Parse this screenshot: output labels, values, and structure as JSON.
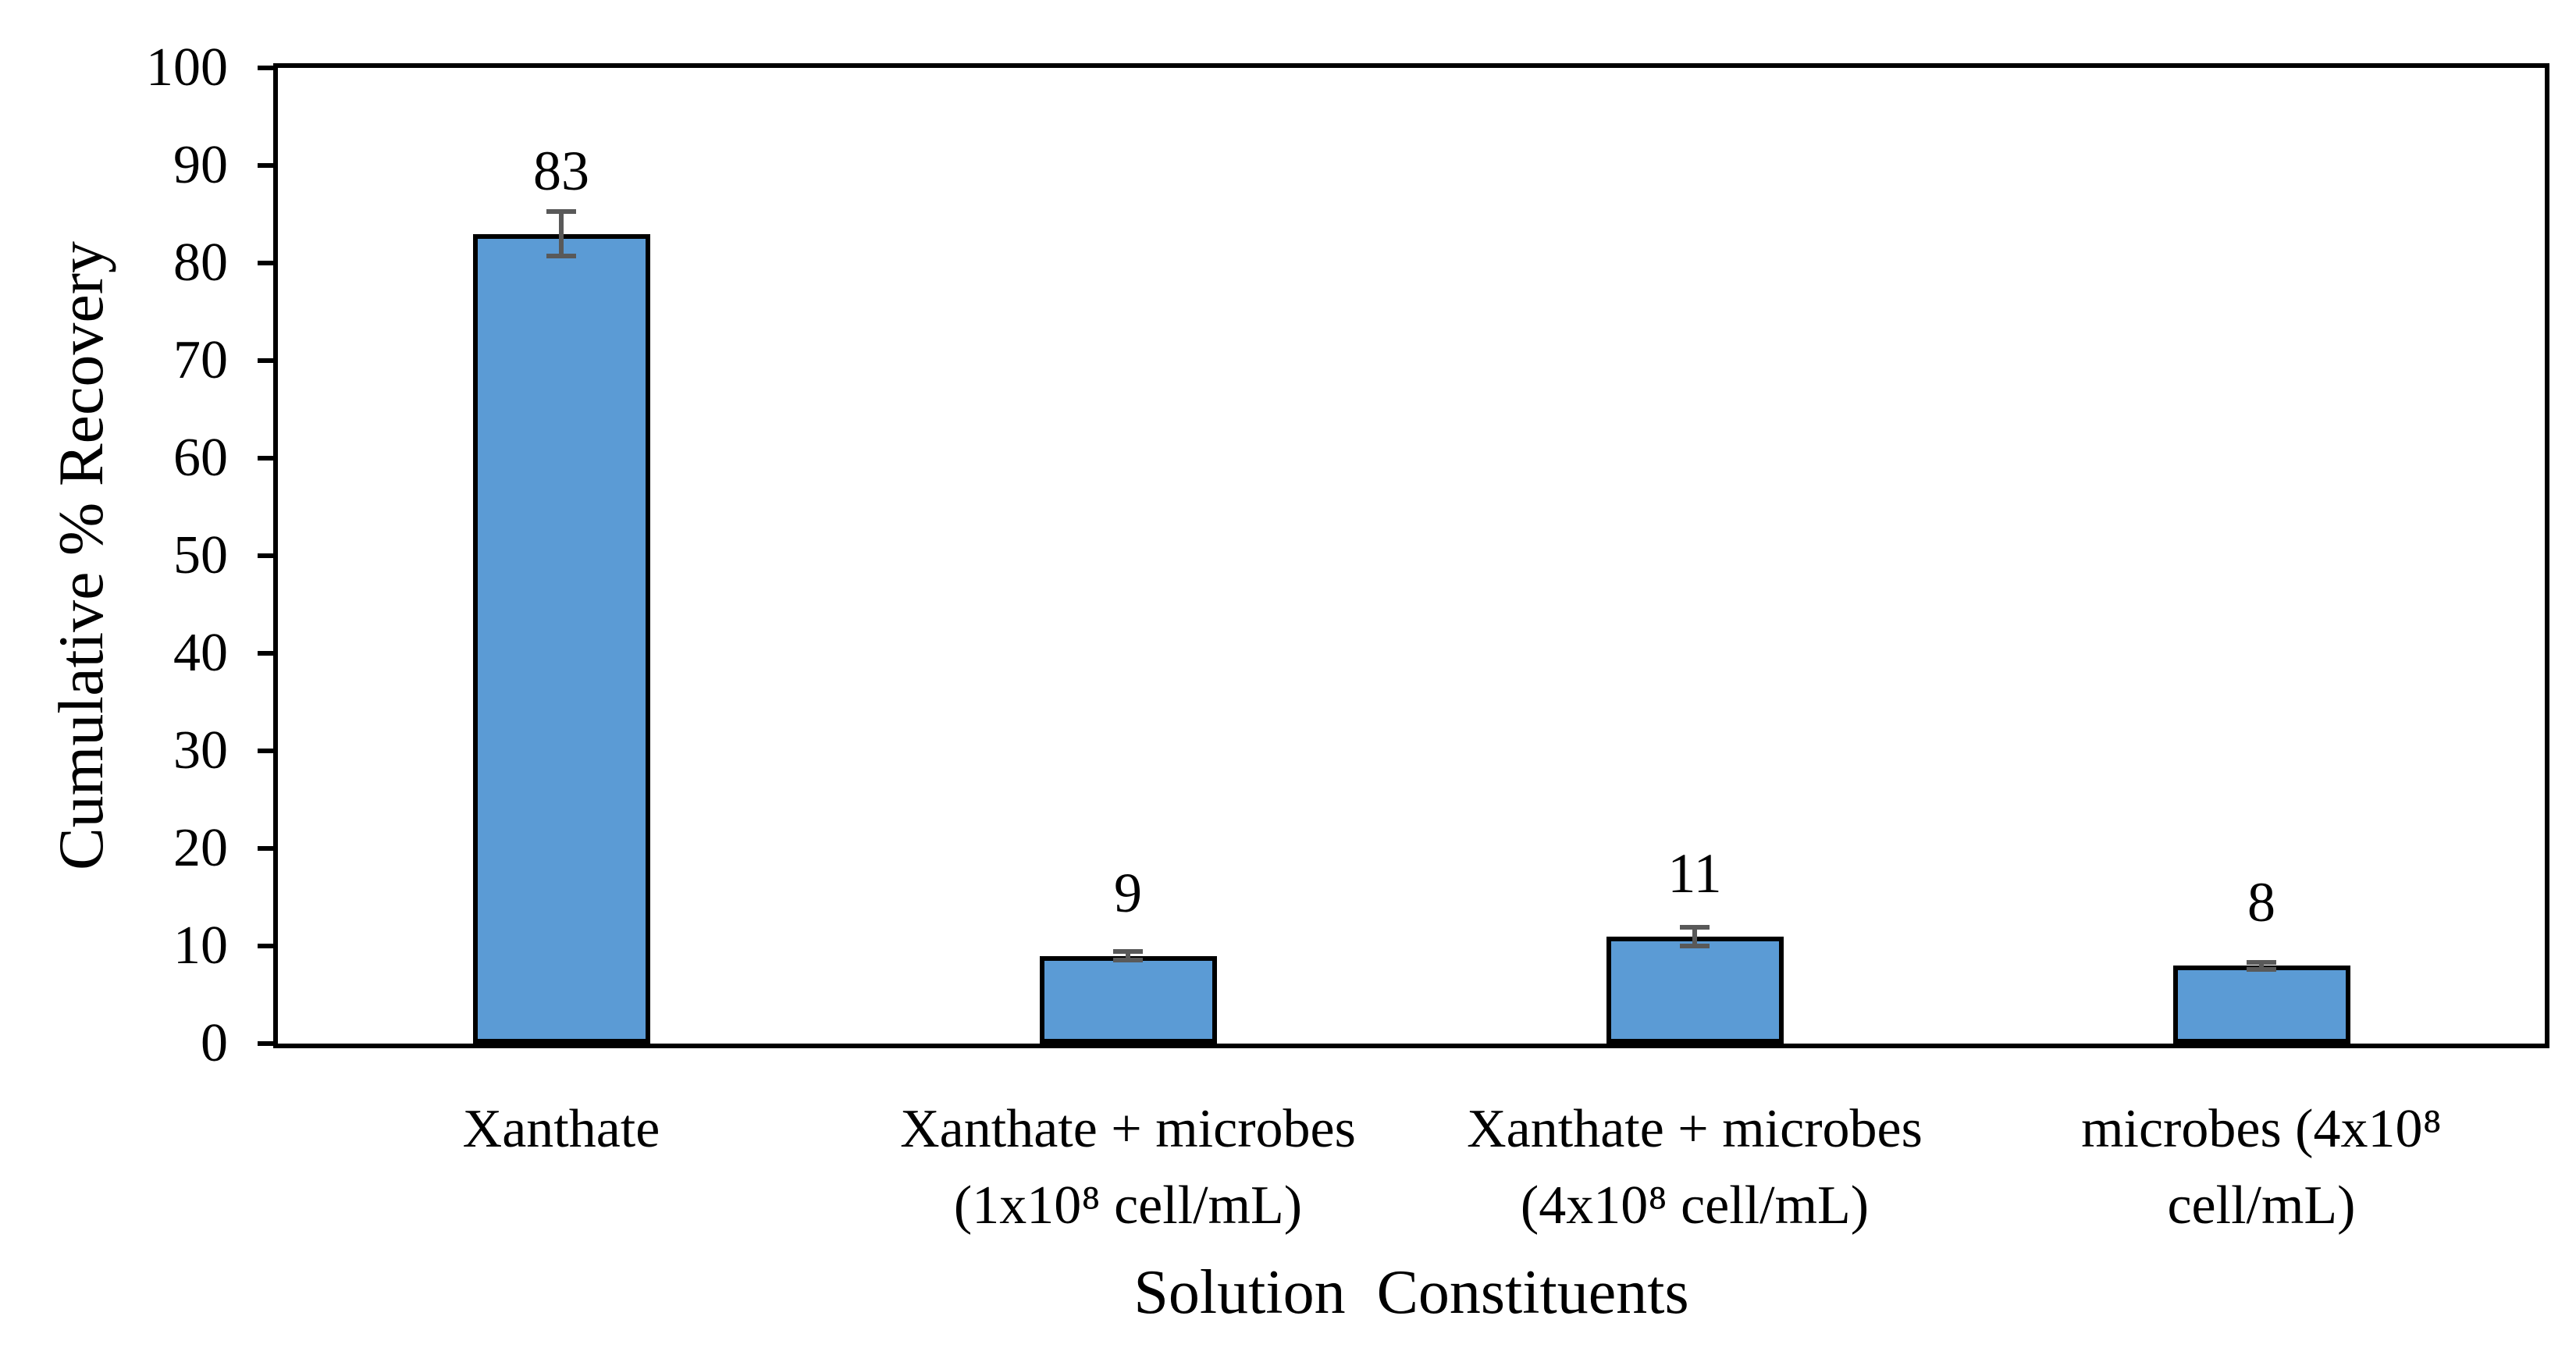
{
  "chart_data": {
    "type": "bar",
    "title": "",
    "xlabel": "Solution  Constituents",
    "ylabel": "Cumulative % Recovery",
    "ylim": [
      0,
      100
    ],
    "ytick_step": 10,
    "yticks": [
      0,
      10,
      20,
      30,
      40,
      50,
      60,
      70,
      80,
      90,
      100
    ],
    "categories": [
      "Xanthate",
      "Xanthate + microbes (1x10⁸ cell/mL)",
      "Xanthate + microbes (4x10⁸ cell/mL)",
      "microbes (4x10⁸ cell/mL)"
    ],
    "category_lines": [
      [
        "Xanthate"
      ],
      [
        "Xanthate + microbes",
        "(1x10⁸ cell/mL)"
      ],
      [
        "Xanthate + microbes",
        "(4x10⁸ cell/mL)"
      ],
      [
        "microbes (4x10⁸",
        "cell/mL)"
      ]
    ],
    "values": [
      83,
      9,
      11,
      8
    ],
    "value_labels": [
      "83",
      "9",
      "11",
      "8"
    ],
    "errors": [
      2.5,
      0.7,
      1.2,
      0.6
    ],
    "legend_position": "none",
    "grid": "off",
    "frame": "box",
    "colors": {
      "bar_fill": "#5B9BD5",
      "bar_border": "#000000",
      "error_bar": "#595959",
      "axis": "#000000",
      "text": "#000000",
      "background": "#ffffff"
    }
  }
}
